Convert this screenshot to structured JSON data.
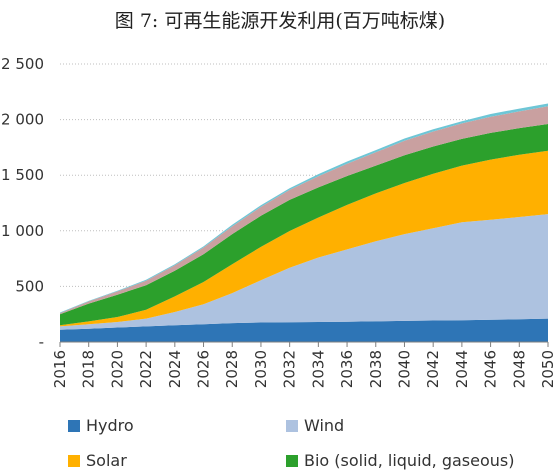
{
  "title": "图 7: 可再生能源开发利用(百万吨标煤)",
  "chart_data": {
    "type": "area",
    "stacked": true,
    "x": [
      2016,
      2018,
      2020,
      2022,
      2024,
      2026,
      2028,
      2030,
      2032,
      2034,
      2036,
      2038,
      2040,
      2042,
      2044,
      2046,
      2048,
      2050
    ],
    "x_tick_labels": [
      "2016",
      "2018",
      "2020",
      "2022",
      "2024",
      "2026",
      "2028",
      "2030",
      "2032",
      "2034",
      "2036",
      "2038",
      "2040",
      "2042",
      "2044",
      "2046",
      "2048",
      "2050"
    ],
    "ylim": [
      0,
      2500
    ],
    "y_ticks": [
      0,
      500,
      1000,
      1500,
      2000,
      2500
    ],
    "y_tick_labels": [
      "-",
      "500",
      "1 000",
      "1 500",
      "2 000",
      "2 500"
    ],
    "series": [
      {
        "name": "Hydro",
        "color": "#2e75b6",
        "values": [
          110,
          120,
          130,
          140,
          150,
          160,
          170,
          175,
          178,
          180,
          183,
          186,
          190,
          193,
          196,
          200,
          204,
          210
        ]
      },
      {
        "name": "Wind",
        "color": "#adc2e0",
        "values": [
          30,
          40,
          50,
          70,
          120,
          180,
          270,
          380,
          490,
          580,
          650,
          720,
          780,
          830,
          880,
          900,
          920,
          940
        ]
      },
      {
        "name": "Solar",
        "color": "#ffb000",
        "values": [
          10,
          25,
          45,
          80,
          140,
          200,
          260,
          300,
          330,
          360,
          400,
          430,
          460,
          490,
          510,
          540,
          560,
          570
        ]
      },
      {
        "name": "Bio (solid, liquid, gaseous)",
        "color": "#2ca02c",
        "values": [
          100,
          160,
          200,
          220,
          230,
          250,
          270,
          280,
          280,
          270,
          260,
          250,
          250,
          245,
          240,
          240,
          240,
          240
        ]
      },
      {
        "name": "",
        "color": "#c9a0a0",
        "values": [
          10,
          20,
          30,
          40,
          50,
          60,
          70,
          80,
          90,
          100,
          110,
          120,
          130,
          135,
          140,
          145,
          150,
          160
        ]
      },
      {
        "name": "",
        "color": "#6ec6d6",
        "values": [
          5,
          5,
          5,
          10,
          10,
          10,
          15,
          15,
          15,
          20,
          20,
          20,
          20,
          20,
          20,
          25,
          25,
          25
        ]
      }
    ],
    "legend": [
      {
        "label": "Hydro",
        "color": "#2e75b6"
      },
      {
        "label": "Wind",
        "color": "#adc2e0"
      },
      {
        "label": "Solar",
        "color": "#ffb000"
      },
      {
        "label": "Bio (solid, liquid, gaseous)",
        "color": "#2ca02c"
      }
    ],
    "grid": "horizontal",
    "legend_position": "bottom"
  }
}
